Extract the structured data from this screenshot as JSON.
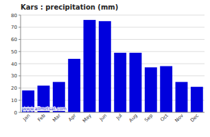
{
  "chart_data": {
    "type": "bar",
    "title": "Kars : precipitation (mm)",
    "categories": [
      "Jan",
      "Feb",
      "Mar",
      "Apr",
      "May",
      "Jun",
      "Jul",
      "Aug",
      "Sep",
      "Oct",
      "Nov",
      "Dec"
    ],
    "values": [
      18,
      22,
      25,
      44,
      76,
      75,
      49,
      49,
      37,
      38,
      25,
      21
    ],
    "color": "#0000dd",
    "ylim": [
      0,
      80
    ],
    "yticks": [
      0,
      10,
      20,
      30,
      40,
      50,
      60,
      70,
      80
    ],
    "grid": true,
    "annotation": "www.allmetsat.com"
  }
}
